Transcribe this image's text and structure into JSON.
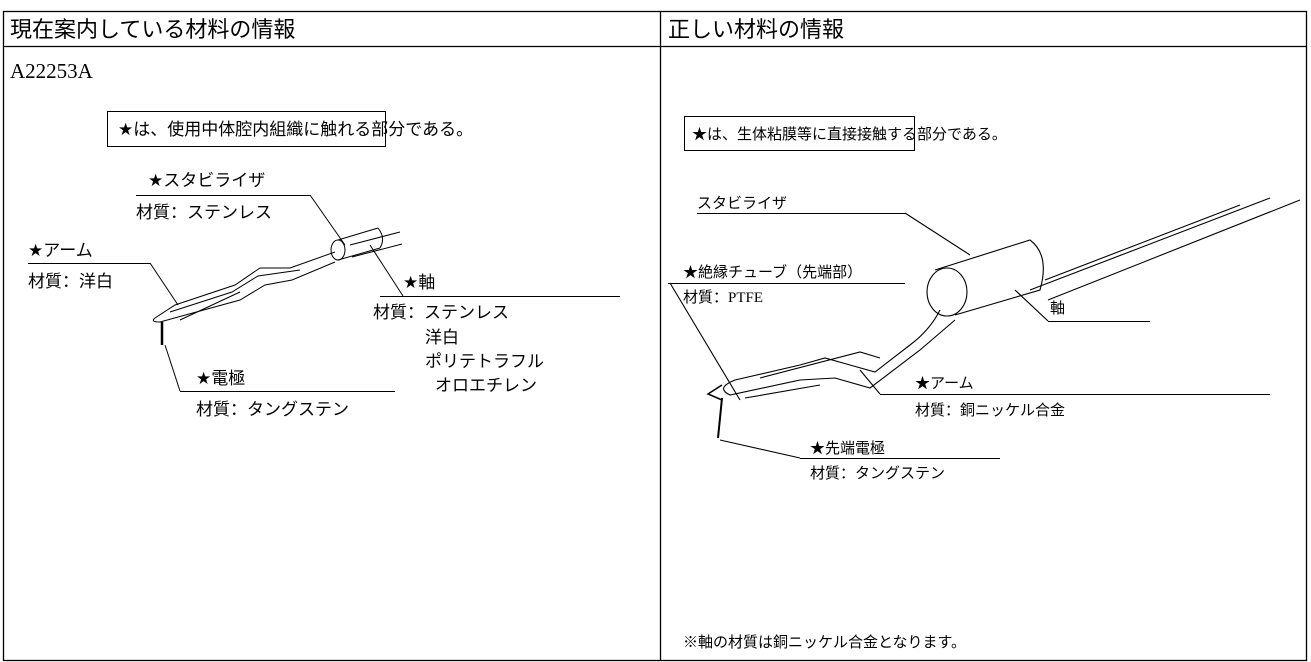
{
  "table": {
    "headers": [
      "現在案内している材料の情報",
      "正しい材料の情報"
    ],
    "current": {
      "code": "A22253A",
      "note": "★は、使用中体腔内組織に触れる部分である。",
      "labels": [
        "★スタビライザ",
        "材質：ステンレス",
        "★アーム",
        "材質：洋白",
        "★軸",
        "材質：ステンレス",
        "洋白",
        "ポリテトラフル",
        "オロエチレン",
        "★電極",
        "材質：タングステン"
      ]
    },
    "correct": {
      "note": "★は、生体粘膜等に直接接触する部分である。",
      "labels": [
        "スタビライザ",
        "★絶縁チューブ（先端部）",
        "材質：PTFE",
        "軸",
        "★アーム",
        "材質：銅ニッケル合金",
        "★先端電極",
        "材質：タングステン"
      ],
      "footnote": "※軸の材質は銅ニッケル合金となります。"
    }
  }
}
